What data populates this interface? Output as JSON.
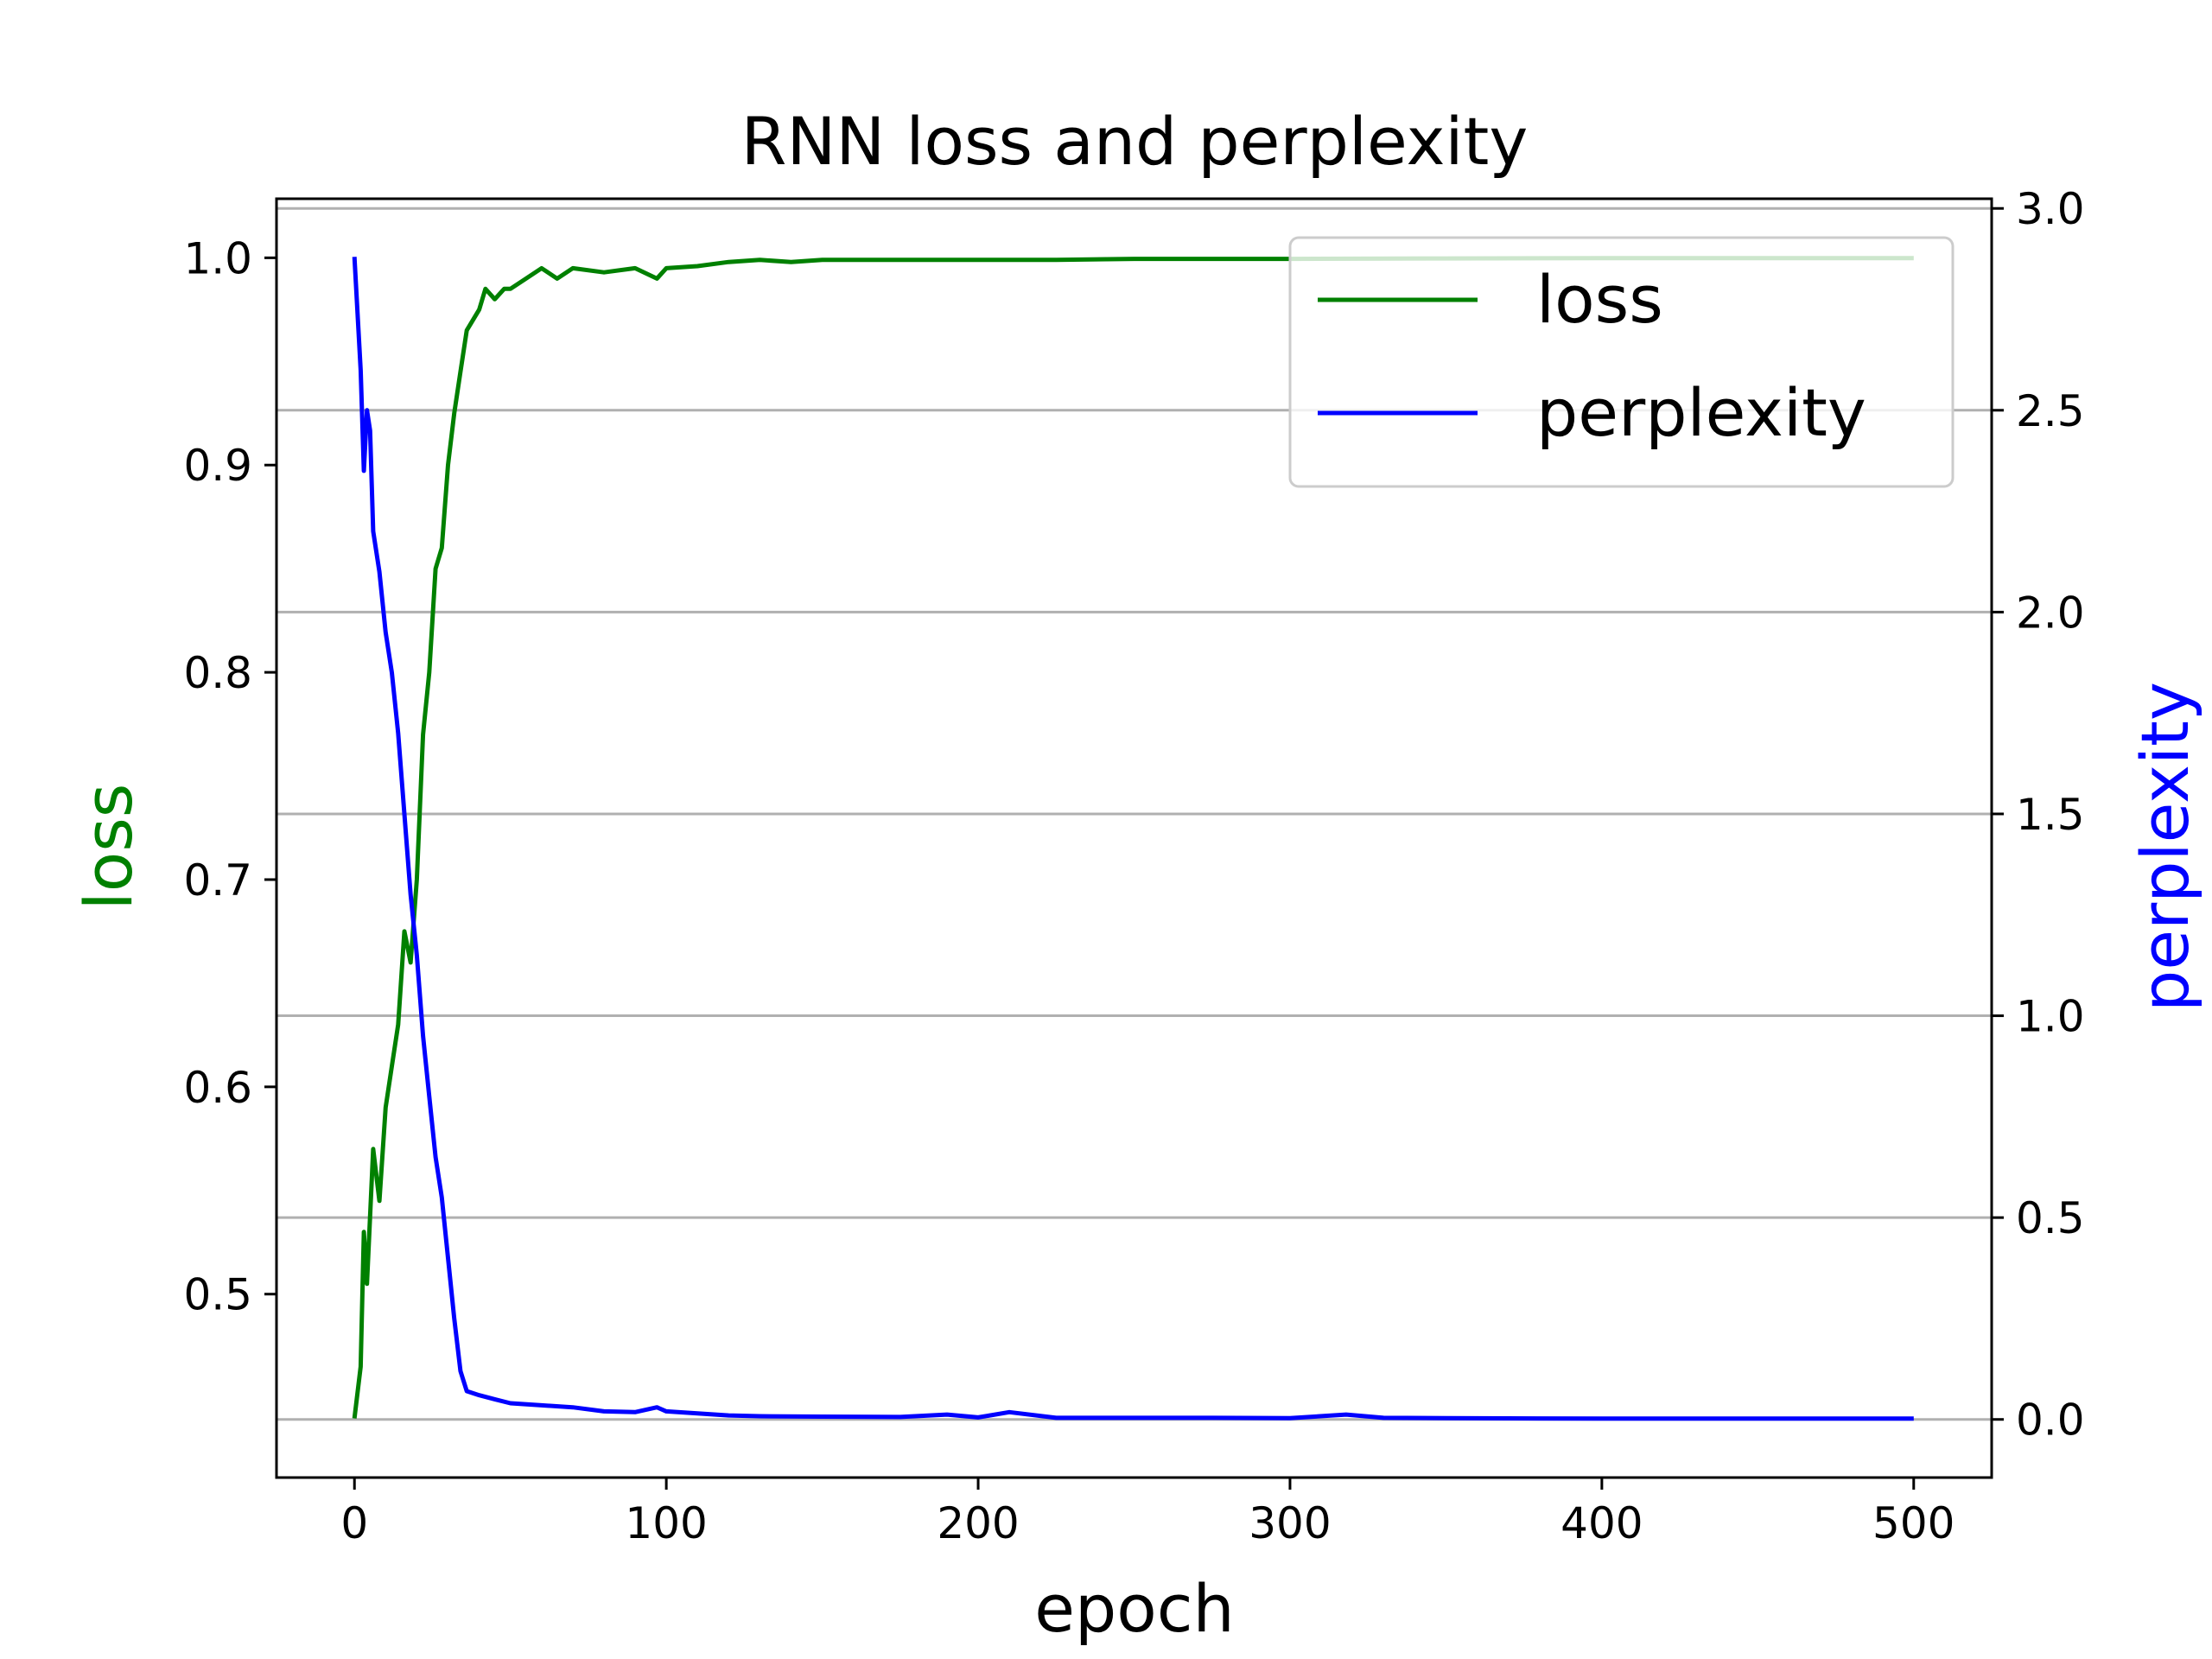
{
  "chart_data": {
    "type": "line",
    "title": "RNN loss and perplexity",
    "xlabel": "epoch",
    "ylabel_left": "loss",
    "ylabel_right": "perplexity",
    "xlim": [
      -25,
      525
    ],
    "ylim_left": [
      0.4115,
      1.0285
    ],
    "ylim_right": [
      -0.144,
      3.024
    ],
    "x_ticks": [
      "0",
      "100",
      "200",
      "300",
      "400",
      "500"
    ],
    "y_ticks_left": [
      "0.5",
      "0.6",
      "0.7",
      "0.8",
      "0.9",
      "1.0"
    ],
    "y_ticks_right": [
      "0.0",
      "0.5",
      "1.0",
      "1.5",
      "2.0",
      "2.5",
      "3.0"
    ],
    "grid": "horizontal (right axis ticks)",
    "legend_position": "upper right",
    "colors": {
      "loss": "#008000",
      "perplexity": "#0000ff",
      "label_left": "#008000",
      "label_right": "#0000ff",
      "grid": "#b0b0b0"
    },
    "series": [
      {
        "name": "loss",
        "axis": "left",
        "color": "#008000",
        "x": [
          0,
          2,
          3,
          4,
          6,
          8,
          10,
          12,
          14,
          16,
          18,
          20,
          22,
          24,
          26,
          28,
          30,
          32,
          34,
          36,
          38,
          40,
          42,
          45,
          48,
          50,
          55,
          60,
          65,
          70,
          80,
          90,
          97,
          100,
          110,
          120,
          130,
          140,
          150,
          175,
          200,
          225,
          250,
          275,
          300,
          350,
          400,
          450,
          500
        ],
        "y": [
          0.44,
          0.465,
          0.53,
          0.505,
          0.57,
          0.545,
          0.59,
          0.61,
          0.63,
          0.675,
          0.66,
          0.7,
          0.77,
          0.8,
          0.85,
          0.86,
          0.9,
          0.925,
          0.945,
          0.965,
          0.97,
          0.975,
          0.985,
          0.98,
          0.985,
          0.985,
          0.99,
          0.995,
          0.99,
          0.995,
          0.993,
          0.995,
          0.99,
          0.995,
          0.996,
          0.998,
          0.999,
          0.998,
          0.999,
          0.999,
          0.999,
          0.999,
          0.9995,
          0.9995,
          0.9995,
          0.9997,
          0.9998,
          0.9998,
          0.9998
        ]
      },
      {
        "name": "perplexity",
        "axis": "right",
        "color": "#0000ff",
        "x": [
          0,
          2,
          3,
          4,
          5,
          6,
          8,
          10,
          12,
          14,
          16,
          18,
          20,
          22,
          24,
          26,
          28,
          30,
          32,
          34,
          36,
          40,
          45,
          50,
          60,
          70,
          80,
          90,
          97,
          100,
          110,
          120,
          130,
          150,
          175,
          190,
          200,
          210,
          225,
          250,
          275,
          300,
          318,
          330,
          350,
          400,
          450,
          500
        ],
        "y": [
          2.88,
          2.6,
          2.35,
          2.5,
          2.45,
          2.2,
          2.1,
          1.95,
          1.85,
          1.7,
          1.5,
          1.3,
          1.15,
          0.95,
          0.8,
          0.65,
          0.55,
          0.4,
          0.25,
          0.12,
          0.07,
          0.06,
          0.05,
          0.04,
          0.035,
          0.03,
          0.02,
          0.018,
          0.03,
          0.02,
          0.015,
          0.01,
          0.008,
          0.007,
          0.006,
          0.012,
          0.005,
          0.018,
          0.004,
          0.004,
          0.004,
          0.003,
          0.012,
          0.004,
          0.003,
          0.002,
          0.002,
          0.002
        ]
      }
    ]
  }
}
